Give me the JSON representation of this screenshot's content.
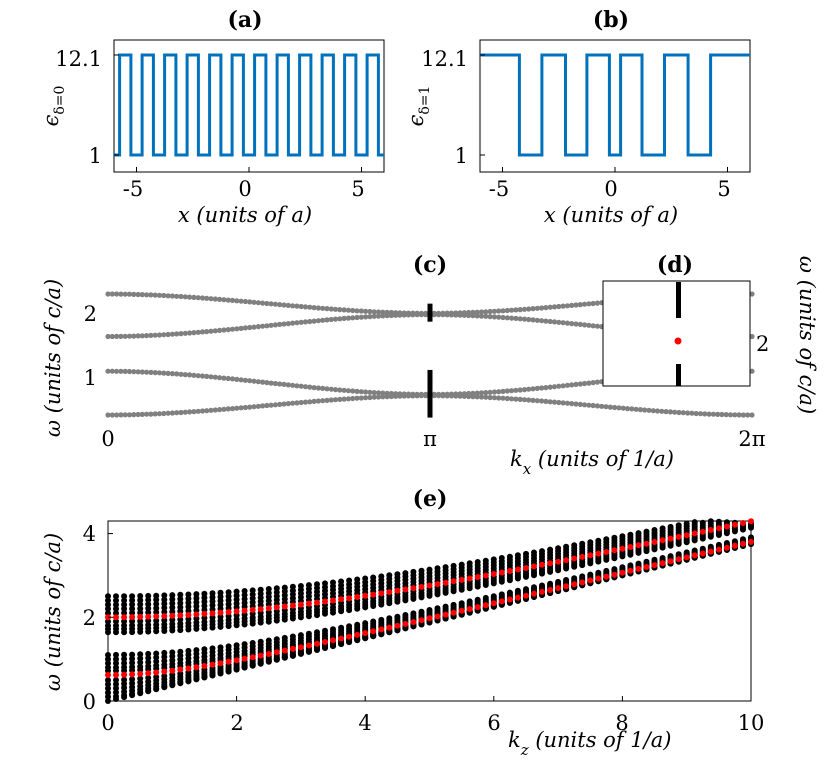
{
  "chart_data": [
    {
      "panel": "(a)",
      "type": "line",
      "title": "(a)",
      "ylabel": "ε_{δ=0}",
      "xlabel": "x (units of a)",
      "xlim": [
        -6,
        6
      ],
      "ylim": [
        1,
        12.1
      ],
      "xticks": [
        "-5",
        "0",
        "5"
      ],
      "yticks": [
        "1",
        "12.1"
      ],
      "color": "#0072BD",
      "series": [
        {
          "x": [
            -6,
            -5.75,
            -5.75,
            -5.25,
            -5.25,
            -4.75,
            -4.75,
            -4.25,
            -4.25,
            -3.75,
            -3.75,
            -3.25,
            -3.25,
            -2.75,
            -2.75,
            -2.25,
            -2.25,
            -1.75,
            -1.75,
            -1.25,
            -1.25,
            -0.75,
            -0.75,
            -0.25,
            -0.25,
            0.25,
            0.25,
            0.75,
            0.75,
            1.25,
            1.25,
            1.75,
            1.75,
            2.25,
            2.25,
            2.75,
            2.75,
            3.25,
            3.25,
            3.75,
            3.75,
            4.25,
            4.25,
            4.75,
            4.75,
            5.25,
            5.25,
            5.75,
            5.75,
            6
          ],
          "y": [
            1,
            1,
            12.1,
            12.1,
            1,
            1,
            12.1,
            12.1,
            1,
            1,
            12.1,
            12.1,
            1,
            1,
            12.1,
            12.1,
            1,
            1,
            12.1,
            12.1,
            1,
            1,
            12.1,
            12.1,
            1,
            1,
            12.1,
            12.1,
            1,
            1,
            12.1,
            12.1,
            1,
            1,
            12.1,
            12.1,
            1,
            1,
            12.1,
            12.1,
            1,
            1,
            12.1,
            12.1,
            1,
            1,
            12.1,
            12.1,
            1,
            1
          ]
        }
      ]
    },
    {
      "panel": "(b)",
      "type": "line",
      "title": "(b)",
      "ylabel": "ε_{δ=1}",
      "xlabel": "x (units of a)",
      "xlim": [
        -6,
        6
      ],
      "ylim": [
        1,
        12.1
      ],
      "xticks": [
        "-5",
        "0",
        "5"
      ],
      "yticks": [
        "1",
        "12.1"
      ],
      "color": "#0072BD",
      "series": [
        {
          "x": [
            -6,
            -4.25,
            -4.25,
            -3.25,
            -3.25,
            -2.2,
            -2.2,
            -1.25,
            -1.25,
            -0.25,
            -0.25,
            0.25,
            0.25,
            1.2,
            1.2,
            2.2,
            2.2,
            3.25,
            3.25,
            4.25,
            4.25,
            6
          ],
          "y": [
            12.1,
            12.1,
            1,
            1,
            12.1,
            12.1,
            1,
            1,
            12.1,
            12.1,
            1,
            1,
            12.1,
            12.1,
            1,
            1,
            12.1,
            12.1,
            1,
            1,
            12.1,
            12.1
          ]
        }
      ]
    },
    {
      "panel": "(c)",
      "type": "scatter",
      "title": "(c)",
      "xlabel": "k_x (units of 1/a)",
      "ylabel": "ω (units of c/a)",
      "xlim": [
        0,
        6.2832
      ],
      "ylim": [
        0.3,
        2.5
      ],
      "xticks": [
        "0",
        "π",
        "2π"
      ],
      "yticks": [
        "1",
        "2"
      ],
      "color": "#808080",
      "gaps": [
        {
          "x": 3.1416,
          "y": [
            1.87,
            2.15
          ]
        },
        {
          "x": 3.1416,
          "y": [
            0.38,
            1.12
          ]
        }
      ],
      "bands": [
        {
          "y_at_0": 2.3,
          "y_at_pi": 2.0,
          "y_at_2pi": 2.3
        },
        {
          "y_at_0": 1.64,
          "y_at_pi": 1.98,
          "y_at_2pi": 1.64
        },
        {
          "y_at_0": 1.1,
          "y_at_pi": 0.74,
          "y_at_2pi": 1.1
        },
        {
          "y_at_0": 0.42,
          "y_at_pi": 0.72,
          "y_at_2pi": 0.42
        }
      ]
    },
    {
      "panel": "(d)",
      "type": "scatter",
      "title": "(d)",
      "ylabel": "ω (units of c/a)",
      "yticks": [
        "2"
      ],
      "point": {
        "x": 3.1416,
        "y": 2.0,
        "color": "#FF0000"
      }
    },
    {
      "panel": "(e)",
      "type": "scatter",
      "title": "(e)",
      "xlabel": "k_z (units of 1/a)",
      "ylabel": "ω (units of c/a)",
      "xlim": [
        0,
        10
      ],
      "ylim": [
        0,
        4.3
      ],
      "xticks": [
        "0",
        "2",
        "4",
        "6",
        "8",
        "10"
      ],
      "yticks": [
        "0",
        "2",
        "4"
      ],
      "black_bands_at_kz0": [
        0.0,
        0.1,
        0.2,
        0.3,
        0.4,
        0.5,
        0.72,
        0.8,
        0.9,
        1.0,
        1.1,
        1.64,
        1.72,
        1.8,
        1.9,
        2.1,
        2.2,
        2.3,
        2.4,
        2.5
      ],
      "red_bands_at_kz0": [
        0.62,
        2.0
      ],
      "colors": {
        "black": "#000000",
        "red": "#FF0000"
      }
    }
  ]
}
